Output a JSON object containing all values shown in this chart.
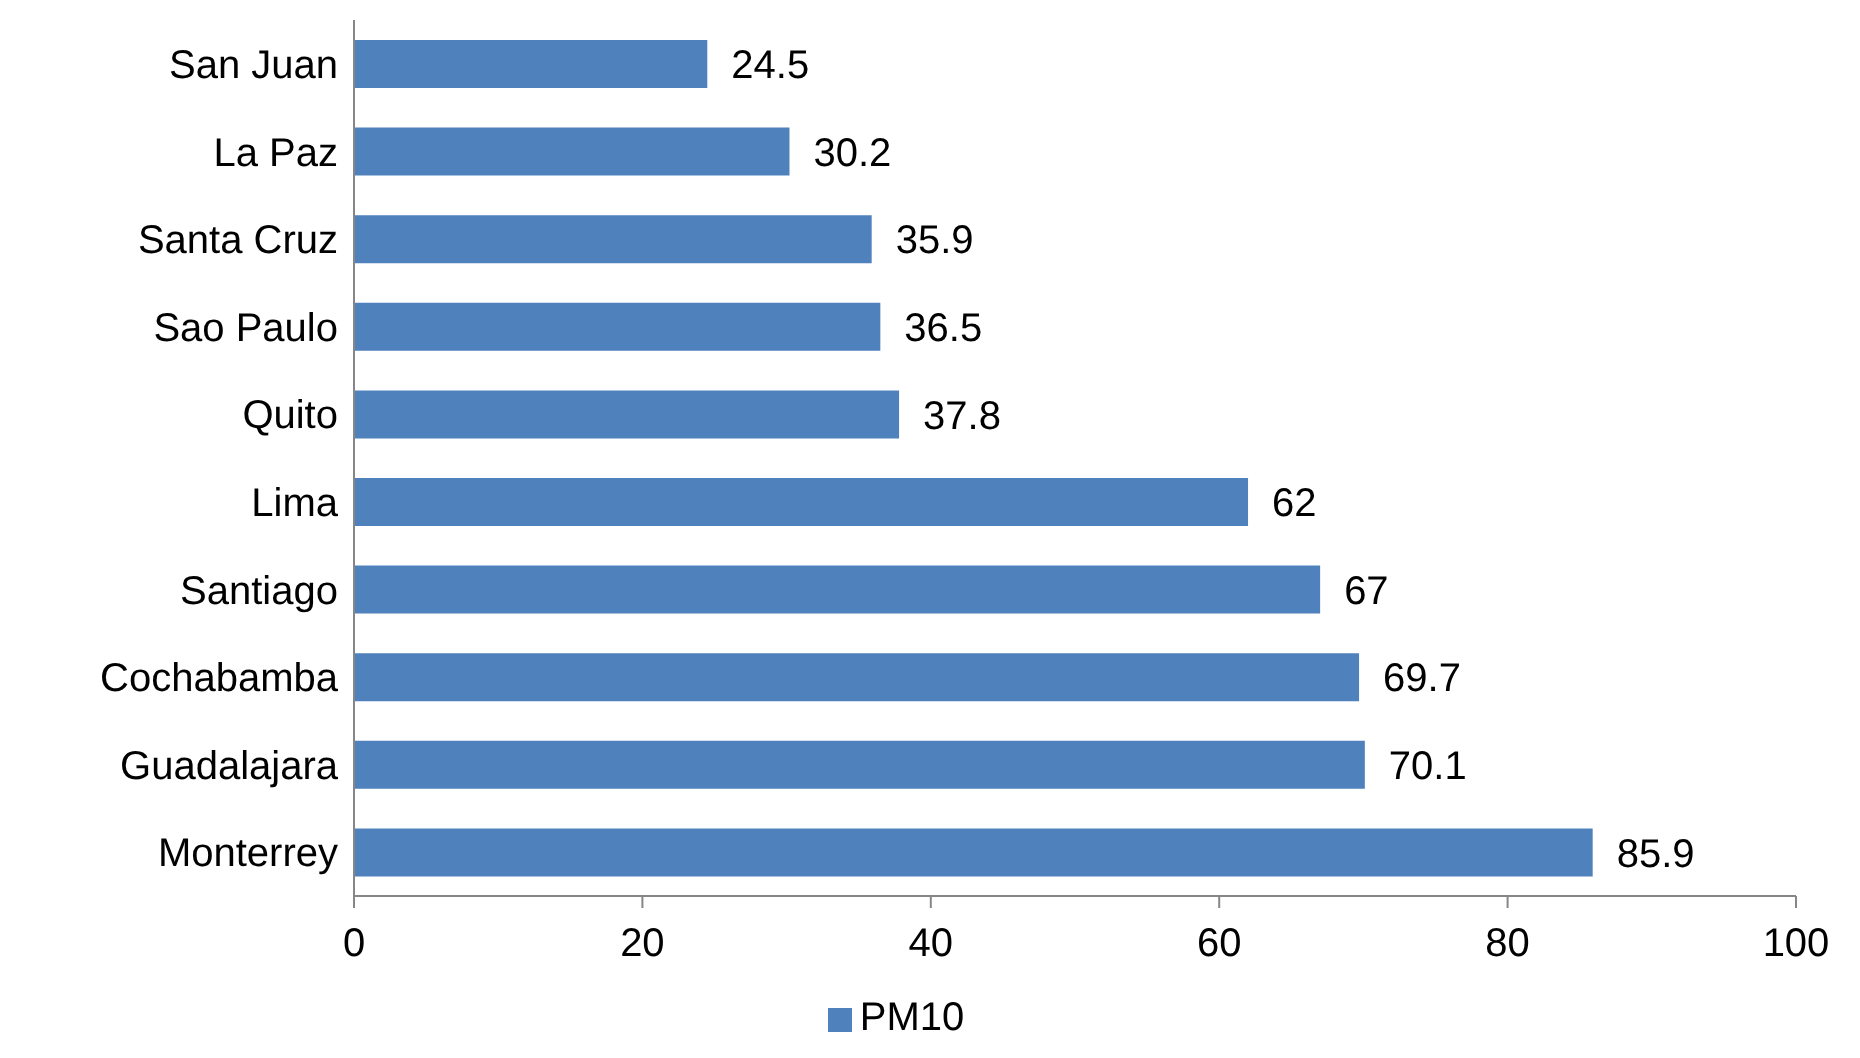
{
  "chart_data": {
    "type": "bar",
    "orientation": "horizontal",
    "categories": [
      "San Juan",
      "La Paz",
      "Santa Cruz",
      "Sao Paulo",
      "Quito",
      "Lima",
      "Santiago",
      "Cochabamba",
      "Guadalajara",
      "Monterrey"
    ],
    "series": [
      {
        "name": "PM10",
        "color": "#4f81bd",
        "values": [
          24.5,
          30.2,
          35.9,
          36.5,
          37.8,
          62,
          67,
          69.7,
          70.1,
          85.9
        ]
      }
    ],
    "xlim": [
      0,
      100
    ],
    "xticks": [
      0,
      20,
      40,
      60,
      80,
      100
    ],
    "data_labels": true,
    "legend": "bottom",
    "grid": false
  }
}
